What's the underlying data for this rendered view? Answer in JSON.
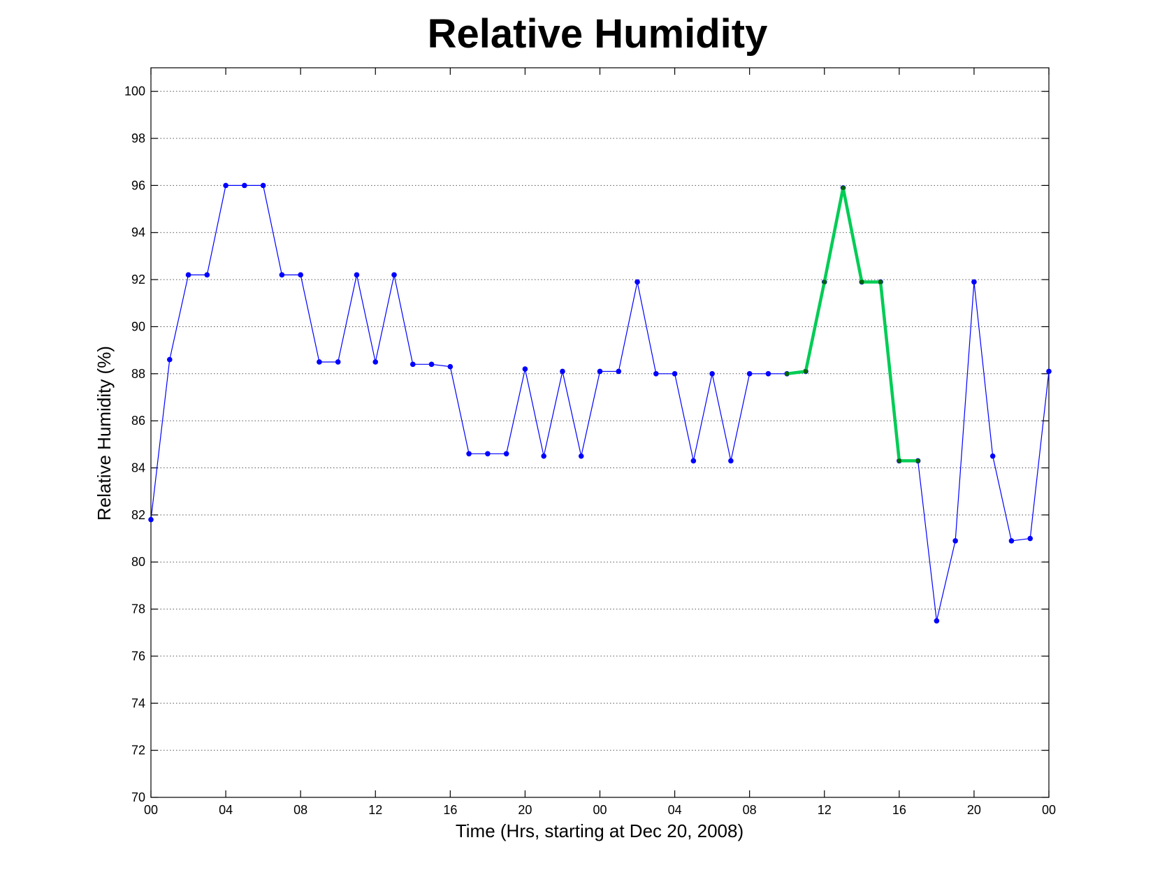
{
  "chart_data": {
    "type": "line",
    "title": "Relative Humidity",
    "xlabel": "Time (Hrs, starting at Dec 20, 2008)",
    "ylabel": "Relative Humidity (%)",
    "xlim": [
      0,
      48
    ],
    "ylim": [
      70,
      101
    ],
    "grid": "horizontal dotted",
    "x_ticks": [
      0,
      4,
      8,
      12,
      16,
      20,
      24,
      28,
      32,
      36,
      40,
      44,
      48
    ],
    "x_tick_labels": [
      "00",
      "04",
      "08",
      "12",
      "16",
      "20",
      "00",
      "04",
      "08",
      "12",
      "16",
      "20",
      "00"
    ],
    "y_ticks": [
      70,
      72,
      74,
      76,
      78,
      80,
      82,
      84,
      86,
      88,
      90,
      92,
      94,
      96,
      98,
      100
    ],
    "y_tick_labels": [
      "70",
      "72",
      "74",
      "76",
      "78",
      "80",
      "82",
      "84",
      "86",
      "88",
      "90",
      "92",
      "94",
      "96",
      "98",
      "100"
    ],
    "series": [
      {
        "color": "#0000ff",
        "x": [
          0,
          1,
          2,
          3,
          4,
          5,
          6,
          7,
          8,
          9,
          10,
          11,
          12,
          13,
          14,
          15,
          16,
          17,
          18,
          19,
          20,
          21,
          22,
          23,
          24,
          25,
          26,
          27,
          28,
          29,
          30,
          31,
          32,
          33,
          34,
          35,
          36,
          37,
          38,
          39,
          40,
          41,
          42,
          43,
          44,
          45,
          46,
          47,
          48
        ],
        "values": [
          81.8,
          88.6,
          92.2,
          92.2,
          96.0,
          96.0,
          96.0,
          92.2,
          92.2,
          88.5,
          88.5,
          92.2,
          88.5,
          92.2,
          88.4,
          88.4,
          88.3,
          84.6,
          84.6,
          84.6,
          88.2,
          84.5,
          88.1,
          84.5,
          88.1,
          88.1,
          91.9,
          88.0,
          88.0,
          84.3,
          88.0,
          84.3,
          88.0,
          88.0,
          88.0,
          88.1,
          91.9,
          95.9,
          91.9,
          91.9,
          84.3,
          84.3,
          77.5,
          80.9,
          91.9,
          84.5,
          80.9,
          81.0,
          88.1
        ]
      },
      {
        "color": "#00cc55",
        "marker_color": "#006600",
        "x": [
          34,
          35,
          36,
          37,
          38,
          39,
          40,
          41
        ],
        "values": [
          88.0,
          88.1,
          91.9,
          95.9,
          91.9,
          91.9,
          84.3,
          84.3
        ]
      }
    ]
  }
}
